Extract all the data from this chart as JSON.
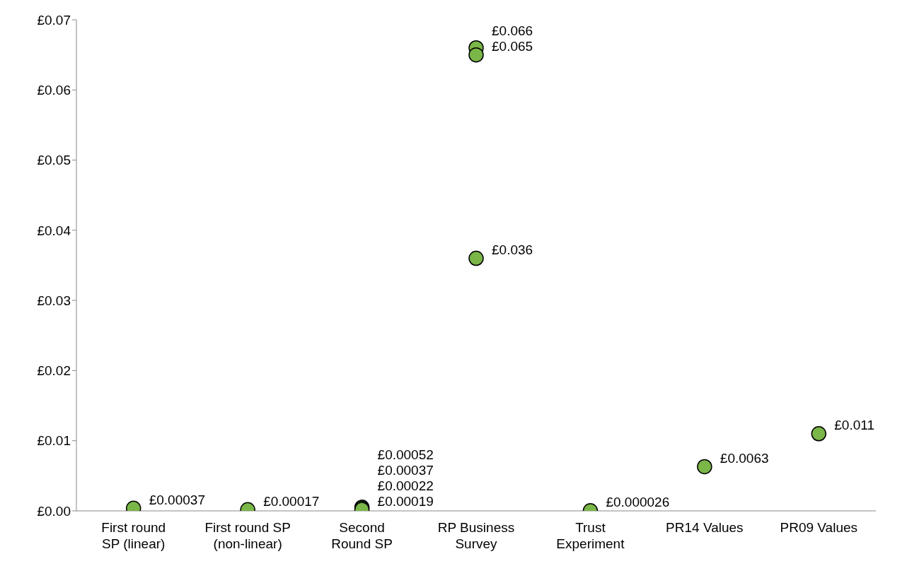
{
  "chart_data": {
    "type": "scatter",
    "categories": [
      "First round SP (linear)",
      "First round SP (non-linear)",
      "Second Round SP",
      "RP Business Survey",
      "Trust Experiment",
      "PR14 Values",
      "PR09 Values"
    ],
    "series": [
      {
        "color": "#7ab648",
        "x": [
          "First round SP (linear)",
          "First round SP (non-linear)",
          "Second Round SP",
          "Second Round SP",
          "Second Round SP",
          "Second Round SP",
          "RP Business Survey",
          "RP Business Survey",
          "RP Business Survey",
          "Trust Experiment",
          "PR14 Values",
          "PR09 Values"
        ],
        "values": [
          0.00037,
          0.00017,
          0.00052,
          0.00037,
          null,
          0.00019,
          0.066,
          0.065,
          0.036,
          2.6e-05,
          0.0063,
          0.011
        ],
        "value_labels": [
          "£0.00037",
          "£0.00017",
          "£0.00052",
          "£0.00037",
          "£0.00022",
          "£0.00019",
          "£0.066",
          "£0.065",
          "£0.036",
          "£0.000026",
          "£0.0063",
          "£0.011"
        ]
      }
    ],
    "ylim": [
      0,
      0.07
    ],
    "yticks": [
      {
        "value": 0,
        "label": "£0.00"
      },
      {
        "value": 0.01,
        "label": "£0.01"
      },
      {
        "value": 0.02,
        "label": "£0.02"
      },
      {
        "value": 0.03,
        "label": "£0.03"
      },
      {
        "value": 0.04,
        "label": "£0.04"
      },
      {
        "value": 0.05,
        "label": "£0.05"
      },
      {
        "value": 0.06,
        "label": "£0.06"
      },
      {
        "value": 0.07,
        "label": "£0.07"
      }
    ],
    "marker": "circle",
    "grid": false,
    "legend": false
  }
}
